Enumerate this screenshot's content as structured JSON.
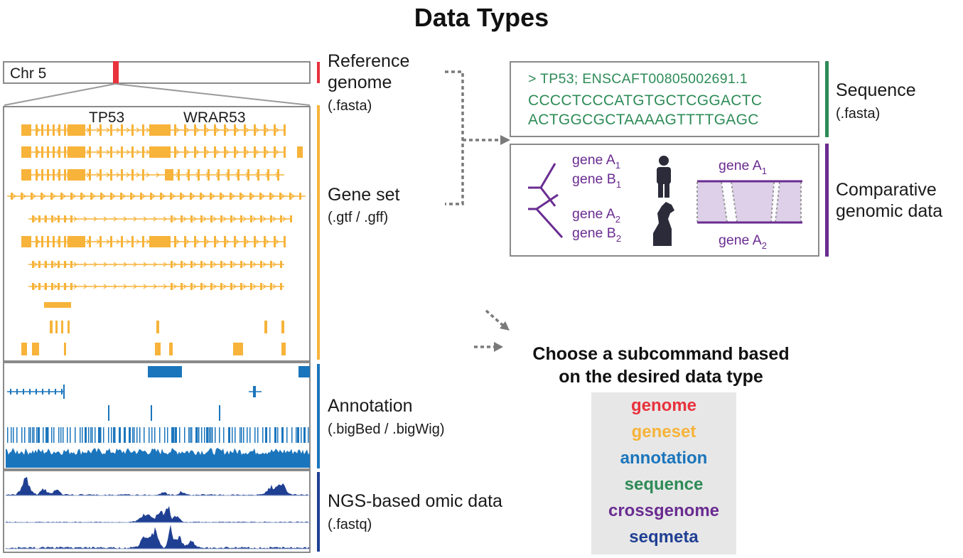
{
  "title": "Data Types",
  "chromosome": {
    "label": "Chr 5"
  },
  "genes": {
    "left": "TP53",
    "right": "WRAR53"
  },
  "categories": {
    "reference": {
      "label_line1": "Reference",
      "label_line2": "genome",
      "format": "(.fasta)",
      "color": "#e8323c"
    },
    "geneset": {
      "label": "Gene set",
      "format": "(.gtf / .gff)",
      "color": "#f7b33a"
    },
    "annotation": {
      "label": "Annotation",
      "format": "(.bigBed / .bigWig)",
      "color": "#1b75bc"
    },
    "ngs": {
      "label": "NGS-based omic data",
      "format": "(.fastq)",
      "color": "#1f3f93"
    }
  },
  "sequence_panel": {
    "header": "> TP53; ENSCAFT00805002691.1",
    "line1": "CCCCTCCCATGTGCTCGGACTC",
    "line2": "ACTGGCGCTAAAAGTTTTGAGC",
    "label": "Sequence",
    "format": "(.fasta)",
    "color": "#2e8b57"
  },
  "comparative_panel": {
    "gene_a1": "gene A",
    "sub_a1": "1",
    "gene_b1": "gene B",
    "sub_b1": "1",
    "gene_a2": "gene A",
    "sub_a2": "2",
    "gene_b2": "gene B",
    "sub_b2": "2",
    "top_gene": "gene A",
    "top_sub": "1",
    "bottom_gene": "gene A",
    "bottom_sub": "2",
    "label_line1": "Comparative",
    "label_line2": "genomic data",
    "color": "#6a2c91"
  },
  "choose": {
    "line1": "Choose a subcommand based",
    "line2": "on the desired data type"
  },
  "subcommands": [
    {
      "name": "genome",
      "color": "#e8323c"
    },
    {
      "name": "geneset",
      "color": "#f7b33a"
    },
    {
      "name": "annotation",
      "color": "#1b75bc"
    },
    {
      "name": "sequence",
      "color": "#2e8b57"
    },
    {
      "name": "crossgenome",
      "color": "#6a2c91"
    },
    {
      "name": "seqmeta",
      "color": "#1f3f93"
    }
  ]
}
